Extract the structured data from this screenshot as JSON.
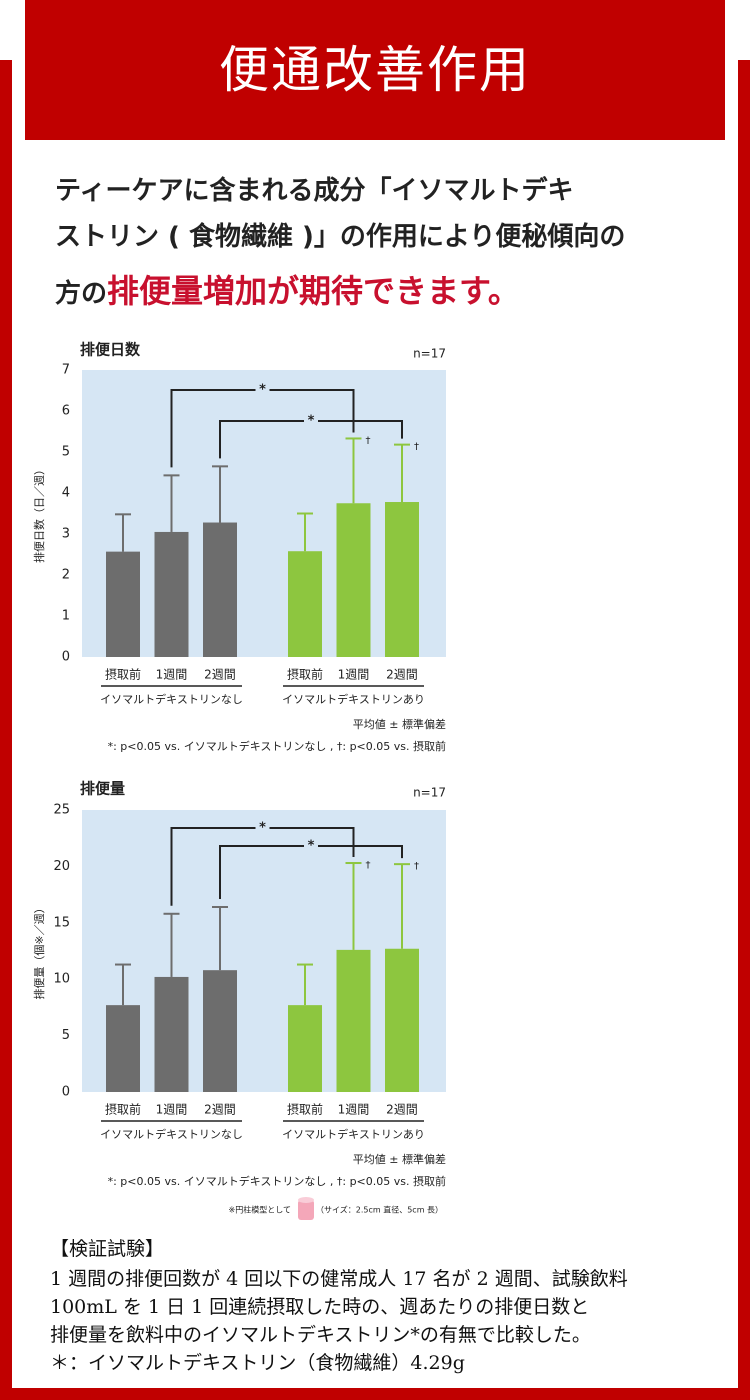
{
  "header": {
    "title": "便通改善作用"
  },
  "intro": {
    "lines": [
      "ティーケアに含まれる成分「イソマルトデキ",
      "ストリン ( 食物繊維 )」の作用により便秘傾向の"
    ],
    "last_prefix": "方の",
    "highlight": "排便量増加が期待できます。"
  },
  "chart_data": [
    {
      "type": "bar",
      "title": "排便日数",
      "note": "n=17",
      "y_label": "排便日数（日／週）",
      "categories": [
        "摂取前",
        "1週間",
        "2週間"
      ],
      "series": [
        {
          "name": "イソマルトデキストリンなし",
          "color": "#6d6d6d",
          "error_color": "#6d6d6d",
          "values": [
            2.57,
            3.05,
            3.28
          ],
          "errors": [
            0.91,
            1.38,
            1.37
          ],
          "markers": [
            null,
            null,
            null
          ]
        },
        {
          "name": "イソマルトデキストリンあり",
          "color": "#8dc63f",
          "error_color": "#8dc63f",
          "values": [
            2.58,
            3.75,
            3.78
          ],
          "errors": [
            0.92,
            1.58,
            1.4
          ],
          "markers": [
            null,
            "†",
            "†"
          ]
        }
      ],
      "brackets": [
        {
          "from": [
            0,
            1
          ],
          "to": [
            1,
            1
          ],
          "label": "*"
        },
        {
          "from": [
            0,
            2
          ],
          "to": [
            1,
            2
          ],
          "label": "*"
        }
      ],
      "ylim": [
        0,
        7
      ],
      "yticks": [
        0,
        1,
        2,
        3,
        4,
        5,
        6,
        7
      ],
      "grid": false,
      "plot_color": "#d6e6f4",
      "footnotes": [
        "平均値 ± 標準偏差",
        "*: p<0.05 vs. イソマルトデキストリンなし , †: p<0.05 vs. 摂取前"
      ]
    },
    {
      "type": "bar",
      "title": "排便量",
      "note": "n=17",
      "y_label": "排便量（個※／週）",
      "categories": [
        "摂取前",
        "1週間",
        "2週間"
      ],
      "series": [
        {
          "name": "イソマルトデキストリンなし",
          "color": "#6d6d6d",
          "error_color": "#6d6d6d",
          "values": [
            7.7,
            10.2,
            10.8
          ],
          "errors": [
            3.6,
            5.6,
            5.6
          ],
          "markers": [
            null,
            null,
            null
          ]
        },
        {
          "name": "イソマルトデキストリンあり",
          "color": "#8dc63f",
          "error_color": "#8dc63f",
          "values": [
            7.7,
            12.6,
            12.7
          ],
          "errors": [
            3.6,
            7.7,
            7.5
          ],
          "markers": [
            null,
            "†",
            "†"
          ]
        }
      ],
      "brackets": [
        {
          "from": [
            0,
            1
          ],
          "to": [
            1,
            1
          ],
          "label": "*"
        },
        {
          "from": [
            0,
            2
          ],
          "to": [
            1,
            2
          ],
          "label": "*"
        }
      ],
      "ylim": [
        0,
        25
      ],
      "yticks": [
        0,
        5,
        10,
        15,
        20,
        25
      ],
      "grid": false,
      "plot_color": "#d6e6f4",
      "footnotes": [
        "平均値 ± 標準偏差",
        "*: p<0.05 vs. イソマルトデキストリンなし , †: p<0.05 vs. 摂取前"
      ],
      "model_note": "※円柱模型として",
      "model_size": "（サイズ：2.5cm 直径、5cm 長）"
    }
  ],
  "study": {
    "heading": "【検証試験】",
    "lines": [
      "1 週間の排便回数が 4 回以下の健常成人 17 名が 2 週間、試験飲料",
      "100mL を 1 日 1 回連続摂取した時の、週あたりの排便日数と",
      "排便量を飲料中のイソマルトデキストリン*の有無で比較した。",
      "＊：イソマルトデキストリン（食物繊維）4.29g"
    ]
  }
}
